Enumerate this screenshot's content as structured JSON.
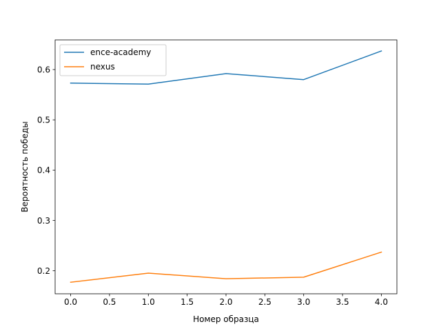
{
  "chart_data": {
    "type": "line",
    "title": "",
    "xlabel": "Номер образца",
    "ylabel": "Вероятность победы",
    "x": [
      0,
      1,
      2,
      3,
      4
    ],
    "xlim": [
      -0.2,
      4.2
    ],
    "ylim": [
      0.154,
      0.659
    ],
    "xticks": [
      0.0,
      0.5,
      1.0,
      1.5,
      2.0,
      2.5,
      3.0,
      3.5,
      4.0
    ],
    "xtick_labels": [
      "0.0",
      "0.5",
      "1.0",
      "1.5",
      "2.0",
      "2.5",
      "3.0",
      "3.5",
      "4.0"
    ],
    "yticks": [
      0.2,
      0.3,
      0.4,
      0.5,
      0.6
    ],
    "ytick_labels": [
      "0.2",
      "0.3",
      "0.4",
      "0.5",
      "0.6"
    ],
    "grid": false,
    "legend_position": "top-left",
    "series": [
      {
        "name": "ence-academy",
        "color": "#1f77b4",
        "values": [
          0.573,
          0.571,
          0.592,
          0.58,
          0.637
        ]
      },
      {
        "name": "nexus",
        "color": "#ff7f0e",
        "values": [
          0.177,
          0.195,
          0.184,
          0.187,
          0.237
        ]
      }
    ]
  }
}
